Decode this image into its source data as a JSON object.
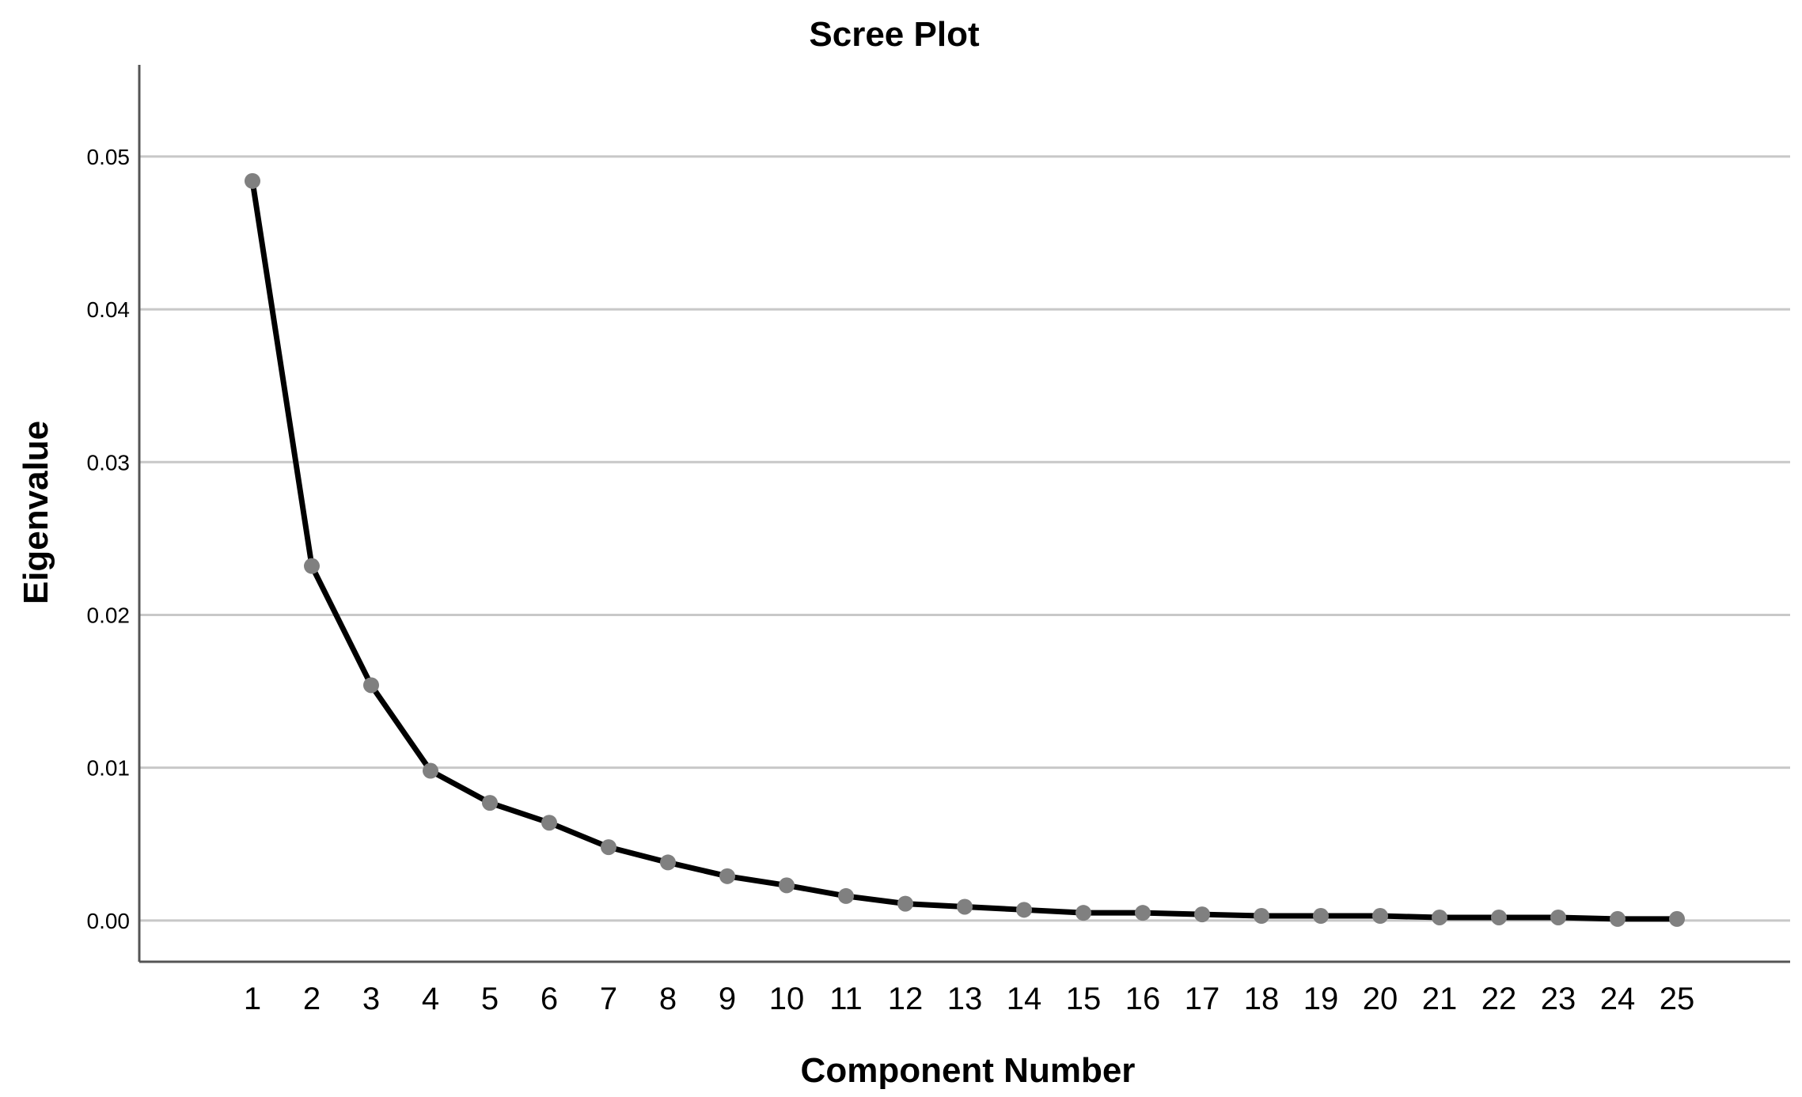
{
  "chart_data": {
    "type": "line",
    "title": "Scree Plot",
    "xlabel": "Component Number",
    "ylabel": "Eigenvalue",
    "categories": [
      "1",
      "2",
      "3",
      "4",
      "5",
      "6",
      "7",
      "8",
      "9",
      "10",
      "11",
      "12",
      "13",
      "14",
      "15",
      "16",
      "17",
      "18",
      "19",
      "20",
      "21",
      "22",
      "23",
      "24",
      "25"
    ],
    "x": [
      1,
      2,
      3,
      4,
      5,
      6,
      7,
      8,
      9,
      10,
      11,
      12,
      13,
      14,
      15,
      16,
      17,
      18,
      19,
      20,
      21,
      22,
      23,
      24,
      25
    ],
    "values": [
      0.0484,
      0.0232,
      0.0154,
      0.0098,
      0.0077,
      0.0064,
      0.0048,
      0.0038,
      0.0029,
      0.0023,
      0.0016,
      0.0011,
      0.0009,
      0.0007,
      0.0005,
      0.0005,
      0.0004,
      0.0003,
      0.0003,
      0.0003,
      0.0002,
      0.0002,
      0.0002,
      0.0001,
      0.0001
    ],
    "yticks": [
      "0.00",
      "0.01",
      "0.02",
      "0.03",
      "0.04",
      "0.05"
    ],
    "ylim": [
      -0.0027,
      0.056
    ],
    "grid": true,
    "legend": "none",
    "colors": {
      "line": "#000000",
      "marker": "#808080",
      "grid": "#c8c8c8",
      "axis": "#555555"
    }
  }
}
